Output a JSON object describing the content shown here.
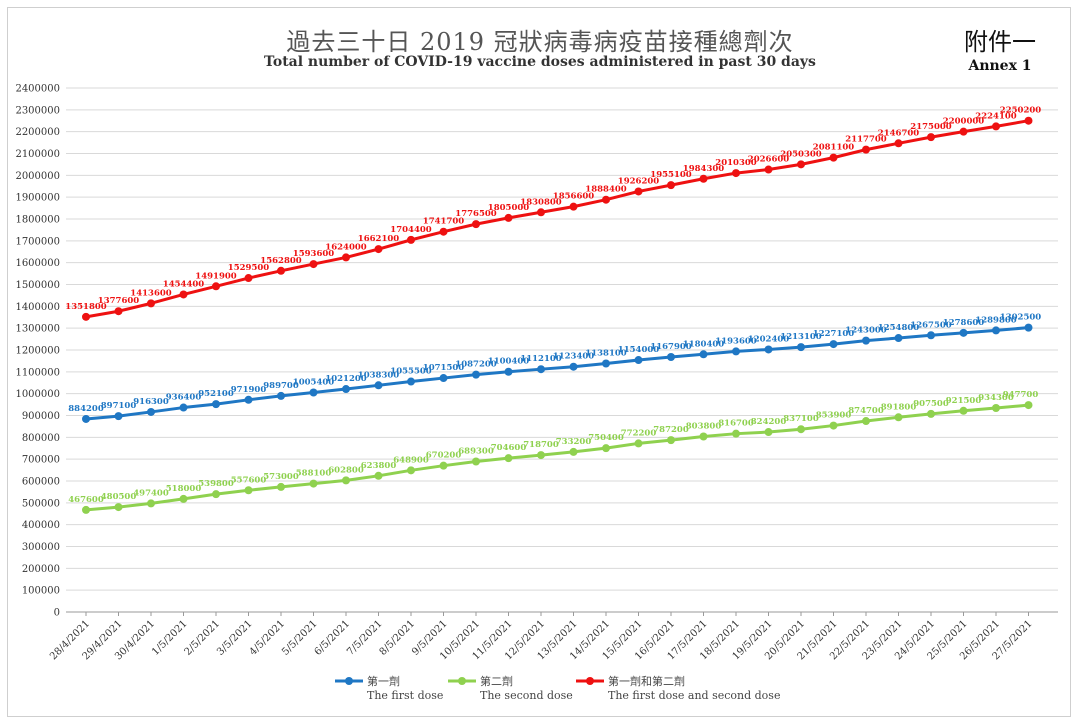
{
  "header": {
    "title_zh": "過去三十日 2019 冠狀病毒病疫苗接種總劑次",
    "title_en": "Total number of COVID-19 vaccine doses administered in past 30 days",
    "annex_zh": "附件一",
    "annex_en": "Annex 1"
  },
  "chart_data": {
    "type": "line",
    "title": "過去三十日 2019 冠狀病毒病疫苗接種總劑次",
    "subtitle": "Total number of COVID-19 vaccine doses administered in past 30 days",
    "xlabel": "",
    "ylabel": "",
    "ylim": [
      0,
      2400000
    ],
    "yticks": [
      "0",
      "100000",
      "200000",
      "300000",
      "400000",
      "500000",
      "600000",
      "700000",
      "800000",
      "900000",
      "1000000",
      "1100000",
      "1200000",
      "1300000",
      "1400000",
      "1500000",
      "1600000",
      "1700000",
      "1800000",
      "1900000",
      "2000000",
      "2100000",
      "2200000",
      "2300000",
      "2400000"
    ],
    "grid": true,
    "legend_position": "bottom",
    "categories": [
      "28/4/2021",
      "29/4/2021",
      "30/4/2021",
      "1/5/2021",
      "2/5/2021",
      "3/5/2021",
      "4/5/2021",
      "5/5/2021",
      "6/5/2021",
      "7/5/2021",
      "8/5/2021",
      "9/5/2021",
      "10/5/2021",
      "11/5/2021",
      "12/5/2021",
      "13/5/2021",
      "14/5/2021",
      "15/5/2021",
      "16/5/2021",
      "17/5/2021",
      "18/5/2021",
      "19/5/2021",
      "20/5/2021",
      "21/5/2021",
      "22/5/2021",
      "23/5/2021",
      "24/5/2021",
      "25/5/2021",
      "26/5/2021",
      "27/5/2021"
    ],
    "series": [
      {
        "name": "第一劑",
        "name_en": "The first dose",
        "color": "#1f77c4",
        "values": [
          884200,
          897100,
          916300,
          936400,
          952100,
          971900,
          989700,
          1005400,
          1021200,
          1038300,
          1055500,
          1071500,
          1087200,
          1100400,
          1112100,
          1123400,
          1138100,
          1154000,
          1167900,
          1180400,
          1193600,
          1202400,
          1213100,
          1227100,
          1243000,
          1254800,
          1267500,
          1278600,
          1289800,
          1302500
        ]
      },
      {
        "name": "第二劑",
        "name_en": "The second dose",
        "color": "#8fd14f",
        "values": [
          467600,
          480500,
          497400,
          518000,
          539800,
          557600,
          573000,
          588100,
          602800,
          623800,
          648900,
          670200,
          689300,
          704600,
          718700,
          733200,
          750400,
          772200,
          787200,
          803800,
          816700,
          824200,
          837100,
          853900,
          874700,
          891800,
          907500,
          921500,
          934300,
          947700
        ]
      },
      {
        "name": "第一劑和第二劑",
        "name_en": "The first dose and second dose",
        "color": "#ee1111",
        "values": [
          1351800,
          1377600,
          1413600,
          1454400,
          1491900,
          1529500,
          1562800,
          1593600,
          1624000,
          1662100,
          1704400,
          1741700,
          1776500,
          1805000,
          1830800,
          1856600,
          1888400,
          1926200,
          1955100,
          1984300,
          2010300,
          2026600,
          2050300,
          2081100,
          2117700,
          2146700,
          2175000,
          2200000,
          2224100,
          2250200
        ]
      }
    ]
  }
}
